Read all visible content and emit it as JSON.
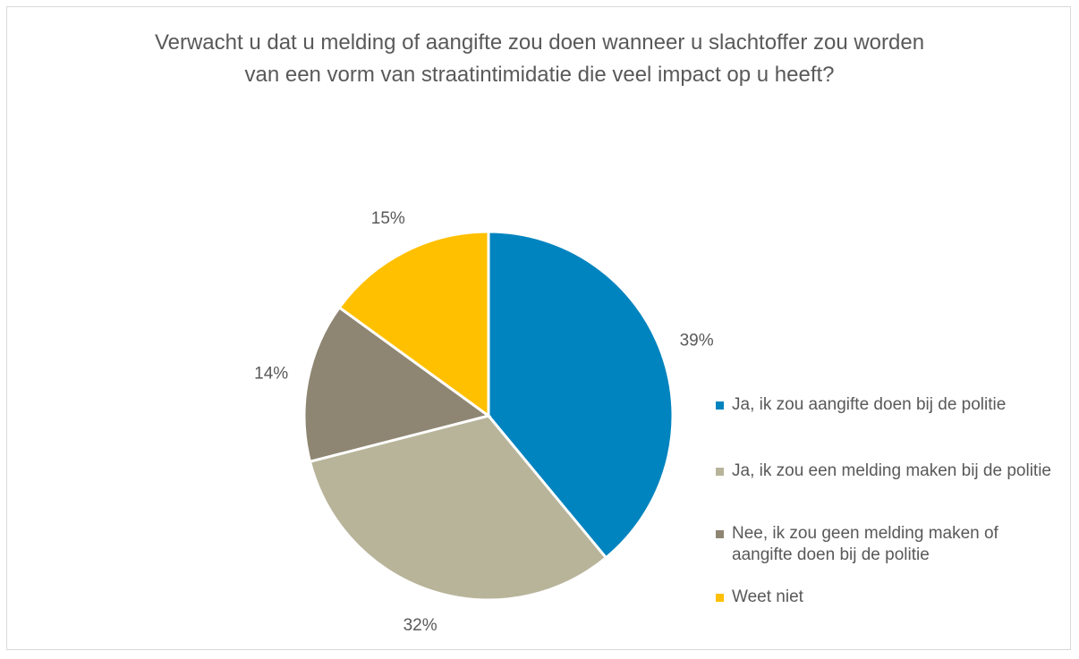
{
  "chart_data": {
    "type": "pie",
    "title": "Verwacht u dat u melding of aangifte zou doen wanneer u slachtoffer zou worden van een vorm van straatintimidatie die veel impact op u heeft?",
    "categories": [
      "Ja, ik zou aangifte doen bij de politie",
      "Ja, ik zou een melding maken bij de politie",
      "Nee, ik zou geen melding maken of aangifte doen bij de politie",
      "Weet niet"
    ],
    "values": [
      39,
      32,
      14,
      15
    ],
    "value_labels": [
      "39%",
      "32%",
      "14%",
      "15%"
    ],
    "colors": [
      "#0084bf",
      "#b8b49a",
      "#8e8672",
      "#ffc000"
    ],
    "legend": "right"
  }
}
